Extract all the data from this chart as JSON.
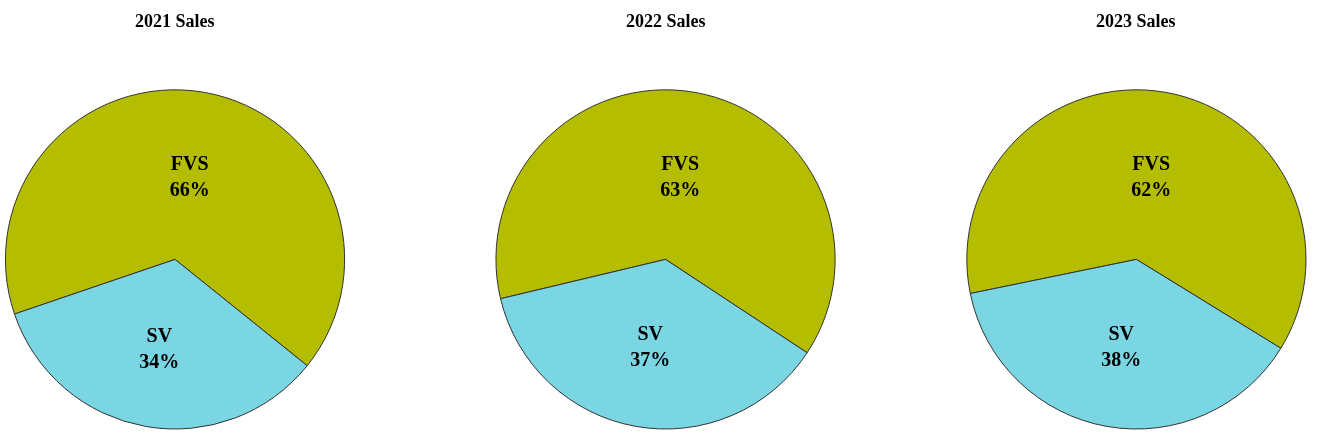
{
  "chart_data": [
    {
      "type": "pie",
      "title": "2021 Sales",
      "categories": [
        "FVS",
        "SV"
      ],
      "values": [
        66,
        34
      ],
      "value_labels": [
        "66%",
        "34%"
      ],
      "colors": [
        "#b5bd00",
        "#7ad6e3"
      ]
    },
    {
      "type": "pie",
      "title": "2022 Sales",
      "categories": [
        "FVS",
        "SV"
      ],
      "values": [
        63,
        37
      ],
      "value_labels": [
        "63%",
        "37%"
      ],
      "colors": [
        "#b5bd00",
        "#7ad6e3"
      ]
    },
    {
      "type": "pie",
      "title": "2023 Sales",
      "categories": [
        "FVS",
        "SV"
      ],
      "values": [
        62,
        38
      ],
      "value_labels": [
        "62%",
        "38%"
      ],
      "colors": [
        "#b5bd00",
        "#7ad6e3"
      ]
    }
  ]
}
